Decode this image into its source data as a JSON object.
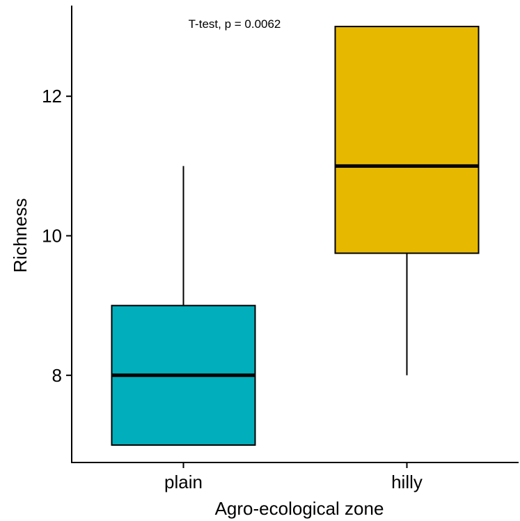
{
  "chart_data": {
    "type": "boxplot",
    "annotation": "T-test, p = 0.0062",
    "xlabel": "Agro-ecological zone",
    "ylabel": "Richness",
    "ylim": [
      6.75,
      13.3
    ],
    "yticks": [
      8,
      10,
      12
    ],
    "ytick_labels": [
      "8",
      "10",
      "12"
    ],
    "categories": [
      "plain",
      "hilly"
    ],
    "boxes": [
      {
        "category": "plain",
        "whisker_low": 7,
        "q1": 7,
        "median": 8,
        "q3": 9,
        "whisker_high": 11,
        "color": "#00AFBB"
      },
      {
        "category": "hilly",
        "whisker_low": 8,
        "q1": 9.75,
        "median": 11,
        "q3": 13,
        "whisker_high": 13,
        "color": "#E7B800"
      }
    ],
    "grid": false,
    "legend": "none"
  }
}
